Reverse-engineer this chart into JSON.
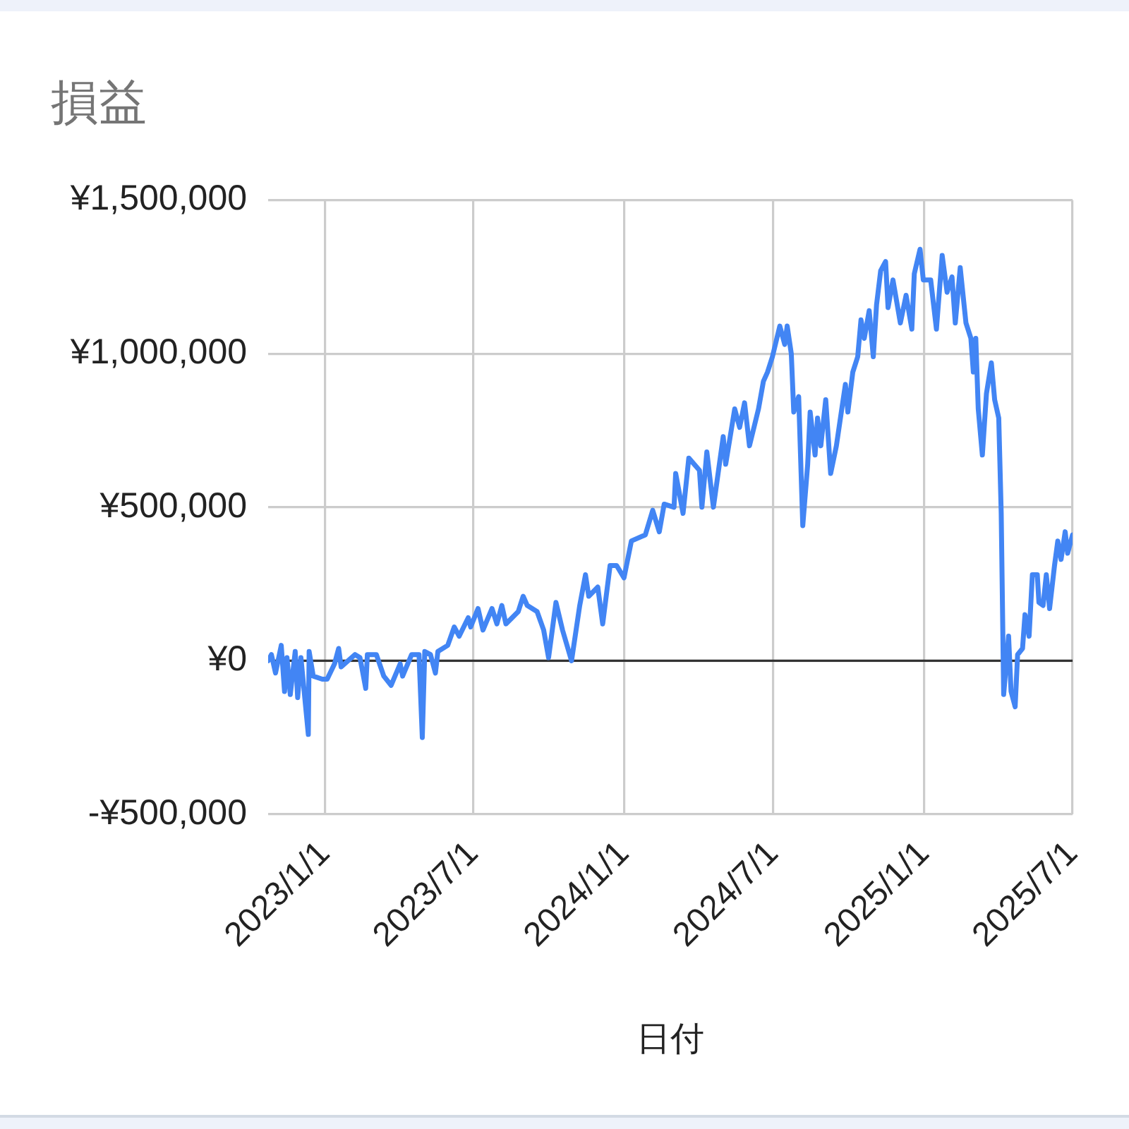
{
  "chart_data": {
    "type": "line",
    "title": "損益",
    "xlabel": "日付",
    "color": "#4285f4",
    "grid": true,
    "xlim": [
      "2022-10-24",
      "2025-07-01"
    ],
    "xticks": [
      {
        "value": "2023-01-01",
        "label": "2023/1/1"
      },
      {
        "value": "2023-07-01",
        "label": "2023/7/1"
      },
      {
        "value": "2024-01-01",
        "label": "2024/1/1"
      },
      {
        "value": "2024-07-01",
        "label": "2024/7/1"
      },
      {
        "value": "2025-01-01",
        "label": "2025/1/1"
      },
      {
        "value": "2025-07-01",
        "label": "2025/7/1"
      }
    ],
    "ylim": [
      -500000,
      1500000
    ],
    "yticks": [
      {
        "value": -500000,
        "label": "-¥500,000"
      },
      {
        "value": 0,
        "label": "¥0"
      },
      {
        "value": 500000,
        "label": "¥500,000"
      },
      {
        "value": 1000000,
        "label": "¥1,000,000"
      },
      {
        "value": 1500000,
        "label": "¥1,500,000"
      }
    ],
    "ref_lines": [
      {
        "axis": "y",
        "value": 0,
        "color": "#333333"
      }
    ],
    "x": [
      "2022-10-24",
      "2022-10-28",
      "2022-11-02",
      "2022-11-09",
      "2022-11-13",
      "2022-11-16",
      "2022-11-20",
      "2022-11-26",
      "2022-11-29",
      "2022-12-03",
      "2022-12-12",
      "2022-12-13",
      "2022-12-18",
      "2022-12-29",
      "2023-01-04",
      "2023-01-13",
      "2023-01-18",
      "2023-01-21",
      "2023-02-07",
      "2023-02-13",
      "2023-02-20",
      "2023-02-22",
      "2023-03-05",
      "2023-03-14",
      "2023-03-23",
      "2023-04-03",
      "2023-04-06",
      "2023-04-17",
      "2023-04-26",
      "2023-04-30",
      "2023-05-03",
      "2023-05-10",
      "2023-05-16",
      "2023-05-19",
      "2023-05-31",
      "2023-06-08",
      "2023-06-14",
      "2023-06-25",
      "2023-06-28",
      "2023-07-07",
      "2023-07-13",
      "2023-07-24",
      "2023-07-30",
      "2023-08-05",
      "2023-08-10",
      "2023-08-25",
      "2023-08-31",
      "2023-09-05",
      "2023-09-17",
      "2023-09-25",
      "2023-10-01",
      "2023-10-10",
      "2023-10-18",
      "2023-10-29",
      "2023-11-08",
      "2023-11-15",
      "2023-11-19",
      "2023-11-30",
      "2023-12-06",
      "2023-12-15",
      "2023-12-23",
      "2024-01-01",
      "2024-01-10",
      "2024-01-27",
      "2024-02-05",
      "2024-02-13",
      "2024-02-19",
      "2024-03-02",
      "2024-03-04",
      "2024-03-13",
      "2024-03-20",
      "2024-04-02",
      "2024-04-05",
      "2024-04-11",
      "2024-04-19",
      "2024-05-01",
      "2024-05-04",
      "2024-05-15",
      "2024-05-21",
      "2024-05-27",
      "2024-06-02",
      "2024-06-13",
      "2024-06-19",
      "2024-06-24",
      "2024-06-30",
      "2024-07-09",
      "2024-07-15",
      "2024-07-18",
      "2024-07-23",
      "2024-07-26",
      "2024-08-01",
      "2024-08-06",
      "2024-08-12",
      "2024-08-15",
      "2024-08-21",
      "2024-08-24",
      "2024-08-28",
      "2024-09-03",
      "2024-09-09",
      "2024-09-16",
      "2024-09-22",
      "2024-09-27",
      "2024-09-30",
      "2024-10-06",
      "2024-10-12",
      "2024-10-16",
      "2024-10-20",
      "2024-10-26",
      "2024-10-31",
      "2024-11-04",
      "2024-11-09",
      "2024-11-15",
      "2024-11-18",
      "2024-11-24",
      "2024-12-03",
      "2024-12-10",
      "2024-12-17",
      "2024-12-20",
      "2024-12-27",
      "2024-12-31",
      "2025-01-09",
      "2025-01-16",
      "2025-01-23",
      "2025-01-29",
      "2025-02-04",
      "2025-02-08",
      "2025-02-14",
      "2025-02-21",
      "2025-02-27",
      "2025-03-02",
      "2025-03-05",
      "2025-03-08",
      "2025-03-13",
      "2025-03-18",
      "2025-03-24",
      "2025-03-28",
      "2025-04-02",
      "2025-04-05",
      "2025-04-08",
      "2025-04-14",
      "2025-04-17",
      "2025-04-22",
      "2025-04-25",
      "2025-05-01",
      "2025-05-04",
      "2025-05-09",
      "2025-05-13",
      "2025-05-19",
      "2025-05-21",
      "2025-05-26",
      "2025-05-30",
      "2025-06-03",
      "2025-06-09",
      "2025-06-13",
      "2025-06-17",
      "2025-06-22",
      "2025-06-25",
      "2025-07-01"
    ],
    "values": [
      0,
      20000,
      -40000,
      50000,
      -100000,
      10000,
      -110000,
      30000,
      -120000,
      10000,
      -240000,
      30000,
      -50000,
      -60000,
      -60000,
      -10000,
      40000,
      -20000,
      20000,
      10000,
      -90000,
      20000,
      20000,
      -50000,
      -80000,
      -10000,
      -50000,
      20000,
      20000,
      -250000,
      30000,
      20000,
      -40000,
      30000,
      50000,
      110000,
      80000,
      140000,
      110000,
      170000,
      100000,
      170000,
      120000,
      180000,
      120000,
      160000,
      210000,
      180000,
      160000,
      100000,
      10000,
      190000,
      100000,
      0,
      180000,
      280000,
      210000,
      240000,
      120000,
      310000,
      310000,
      270000,
      390000,
      410000,
      490000,
      420000,
      510000,
      500000,
      610000,
      480000,
      660000,
      620000,
      500000,
      680000,
      500000,
      730000,
      640000,
      820000,
      760000,
      840000,
      700000,
      820000,
      910000,
      940000,
      990000,
      1090000,
      1030000,
      1090000,
      1000000,
      810000,
      860000,
      440000,
      640000,
      810000,
      670000,
      790000,
      700000,
      850000,
      610000,
      700000,
      810000,
      900000,
      810000,
      940000,
      990000,
      1110000,
      1050000,
      1140000,
      990000,
      1160000,
      1270000,
      1300000,
      1150000,
      1240000,
      1100000,
      1190000,
      1080000,
      1260000,
      1340000,
      1240000,
      1240000,
      1080000,
      1320000,
      1200000,
      1250000,
      1100000,
      1280000,
      1100000,
      1050000,
      940000,
      1050000,
      820000,
      670000,
      870000,
      970000,
      850000,
      790000,
      480000,
      -110000,
      80000,
      -100000,
      -150000,
      20000,
      40000,
      150000,
      80000,
      280000,
      280000,
      190000,
      180000,
      280000,
      170000,
      310000,
      390000,
      330000,
      420000,
      350000,
      410000
    ]
  }
}
